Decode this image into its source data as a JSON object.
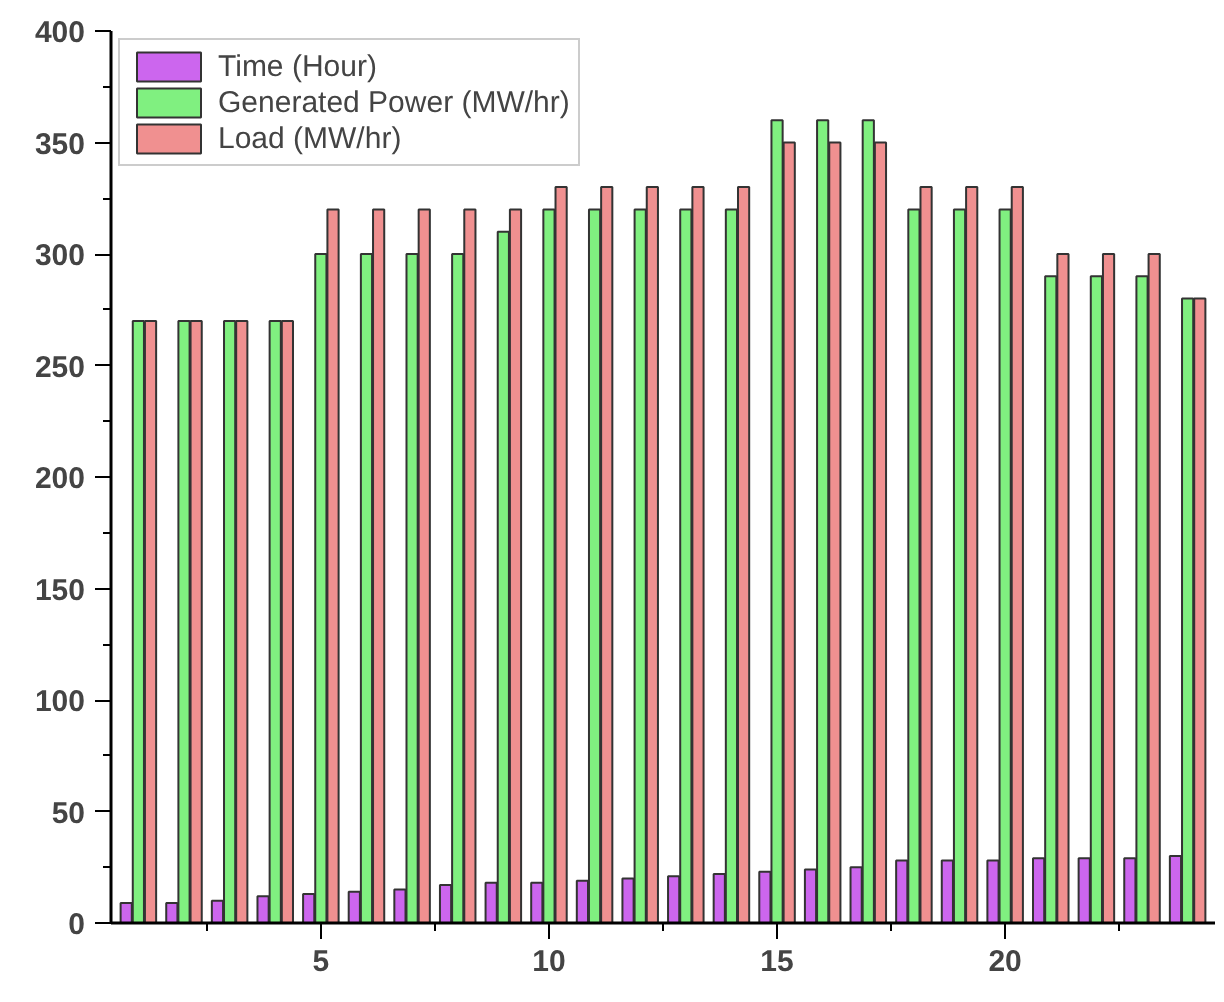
{
  "chart_data": {
    "type": "bar",
    "x": [
      1,
      2,
      3,
      4,
      5,
      6,
      7,
      8,
      9,
      10,
      11,
      12,
      13,
      14,
      15,
      16,
      17,
      18,
      19,
      20,
      21,
      22,
      23,
      24
    ],
    "xlim": [
      0.4,
      24.6
    ],
    "xticks": [
      {
        "value": 2.5,
        "label": null
      },
      5,
      {
        "value": 7.5,
        "label": null
      },
      10,
      {
        "value": 12.5,
        "label": null
      },
      15,
      {
        "value": 17.5,
        "label": null
      },
      20,
      {
        "value": 22.5,
        "label": null
      }
    ],
    "ylim": [
      0,
      400
    ],
    "yticks": [
      0,
      {
        "value": 25,
        "label": null
      },
      50,
      {
        "value": 75,
        "label": null
      },
      100,
      {
        "value": 125,
        "label": null
      },
      150,
      {
        "value": 175,
        "label": null
      },
      200,
      {
        "value": 225,
        "label": null
      },
      250,
      {
        "value": 275,
        "label": null
      },
      300,
      {
        "value": 325,
        "label": null
      },
      350,
      {
        "value": 375,
        "label": null
      },
      400
    ],
    "series": [
      {
        "name": "Time (Hour)",
        "color": "#cc66ee",
        "values": [
          9,
          9,
          10,
          12,
          13,
          14,
          15,
          17,
          18,
          18,
          19,
          20,
          21,
          22,
          23,
          24,
          25,
          28,
          28,
          28,
          29,
          29,
          29,
          30
        ]
      },
      {
        "name": "Generated Power (MW/hr)",
        "color": "#80f080",
        "values": [
          270,
          270,
          270,
          270,
          300,
          300,
          300,
          300,
          310,
          320,
          320,
          320,
          320,
          320,
          360,
          360,
          360,
          320,
          320,
          320,
          290,
          290,
          290,
          280
        ]
      },
      {
        "name": "Load (MW/hr)",
        "color": "#f09090",
        "values": [
          270,
          270,
          270,
          270,
          320,
          320,
          320,
          320,
          320,
          330,
          330,
          330,
          330,
          330,
          350,
          350,
          350,
          330,
          330,
          330,
          300,
          300,
          300,
          280
        ]
      }
    ],
    "legend": "top left",
    "grid": false
  }
}
